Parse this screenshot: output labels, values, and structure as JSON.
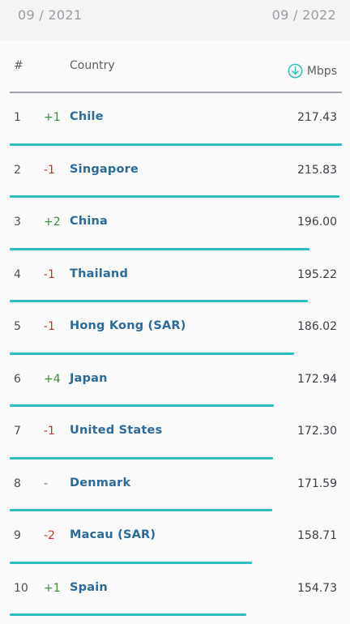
{
  "period": {
    "start": "09 / 2021",
    "end": "09 / 2022"
  },
  "table": {
    "headers": {
      "rank": "#",
      "country": "Country",
      "unit": "Mbps",
      "sort_icon": "download-arrow-circle-icon"
    },
    "accent_color": "#2fbdbd",
    "max_value": 217.43,
    "rows": [
      {
        "rank": "1",
        "change": "+1",
        "trend": "up",
        "country": "Chile",
        "speed": "217.43",
        "value": 217.43
      },
      {
        "rank": "2",
        "change": "-1",
        "trend": "down",
        "country": "Singapore",
        "speed": "215.83",
        "value": 215.83
      },
      {
        "rank": "3",
        "change": "+2",
        "trend": "up",
        "country": "China",
        "speed": "196.00",
        "value": 196.0
      },
      {
        "rank": "4",
        "change": "-1",
        "trend": "down",
        "country": "Thailand",
        "speed": "195.22",
        "value": 195.22
      },
      {
        "rank": "5",
        "change": "-1",
        "trend": "down",
        "country": "Hong Kong (SAR)",
        "speed": "186.02",
        "value": 186.02
      },
      {
        "rank": "6",
        "change": "+4",
        "trend": "up",
        "country": "Japan",
        "speed": "172.94",
        "value": 172.94
      },
      {
        "rank": "7",
        "change": "-1",
        "trend": "down",
        "country": "United States",
        "speed": "172.30",
        "value": 172.3
      },
      {
        "rank": "8",
        "change": "-",
        "trend": "same",
        "country": "Denmark",
        "speed": "171.59",
        "value": 171.59
      },
      {
        "rank": "9",
        "change": "-2",
        "trend": "down",
        "country": "Macau (SAR)",
        "speed": "158.71",
        "value": 158.71
      },
      {
        "rank": "10",
        "change": "+1",
        "trend": "up",
        "country": "Spain",
        "speed": "154.73",
        "value": 154.73
      }
    ]
  }
}
